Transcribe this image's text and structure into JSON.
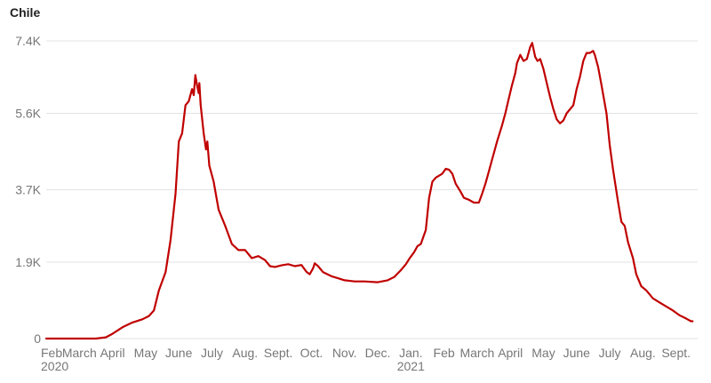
{
  "chart_data": {
    "type": "line",
    "title": "Chile",
    "xlabel": "",
    "ylabel": "",
    "colors": {
      "line": "#c00000",
      "grid": "#e3e3e3",
      "axis_text": "#777777"
    },
    "grid": true,
    "legend": "none",
    "ylim": [
      0,
      7400
    ],
    "y_ticks": [
      {
        "value": 0,
        "label": "0"
      },
      {
        "value": 1900,
        "label": "1.9K"
      },
      {
        "value": 3700,
        "label": "3.7K"
      },
      {
        "value": 5600,
        "label": "5.6K"
      },
      {
        "value": 7400,
        "label": "7.4K"
      }
    ],
    "x_ticks": [
      {
        "month": 0,
        "label": "Feb",
        "sub": "2020"
      },
      {
        "month": 1,
        "label": "March",
        "sub": ""
      },
      {
        "month": 2,
        "label": "April",
        "sub": ""
      },
      {
        "month": 3,
        "label": "May",
        "sub": ""
      },
      {
        "month": 4,
        "label": "June",
        "sub": ""
      },
      {
        "month": 5,
        "label": "July",
        "sub": ""
      },
      {
        "month": 6,
        "label": "Aug.",
        "sub": ""
      },
      {
        "month": 7,
        "label": "Sept.",
        "sub": ""
      },
      {
        "month": 8,
        "label": "Oct.",
        "sub": ""
      },
      {
        "month": 9,
        "label": "Nov.",
        "sub": ""
      },
      {
        "month": 10,
        "label": "Dec.",
        "sub": ""
      },
      {
        "month": 11,
        "label": "Jan.",
        "sub": "2021"
      },
      {
        "month": 12,
        "label": "Feb",
        "sub": ""
      },
      {
        "month": 13,
        "label": "March",
        "sub": ""
      },
      {
        "month": 14,
        "label": "April",
        "sub": ""
      },
      {
        "month": 15,
        "label": "May",
        "sub": ""
      },
      {
        "month": 16,
        "label": "June",
        "sub": ""
      },
      {
        "month": 17,
        "label": "July",
        "sub": ""
      },
      {
        "month": 18,
        "label": "Aug.",
        "sub": ""
      },
      {
        "month": 19,
        "label": "Sept.",
        "sub": ""
      }
    ],
    "xlim_months": [
      0,
      19.5
    ],
    "series": [
      {
        "name": "",
        "points": [
          [
            0,
            0
          ],
          [
            0.5,
            0
          ],
          [
            1.0,
            0
          ],
          [
            1.5,
            0
          ],
          [
            1.8,
            30
          ],
          [
            2.0,
            120
          ],
          [
            2.3,
            280
          ],
          [
            2.6,
            400
          ],
          [
            2.9,
            480
          ],
          [
            3.1,
            560
          ],
          [
            3.25,
            700
          ],
          [
            3.4,
            1200
          ],
          [
            3.6,
            1650
          ],
          [
            3.75,
            2450
          ],
          [
            3.9,
            3600
          ],
          [
            4.0,
            4900
          ],
          [
            4.1,
            5100
          ],
          [
            4.2,
            5800
          ],
          [
            4.3,
            5900
          ],
          [
            4.4,
            6200
          ],
          [
            4.45,
            6050
          ],
          [
            4.5,
            6550
          ],
          [
            4.55,
            6300
          ],
          [
            4.6,
            6100
          ],
          [
            4.62,
            6350
          ],
          [
            4.66,
            5800
          ],
          [
            4.75,
            5100
          ],
          [
            4.82,
            4700
          ],
          [
            4.86,
            4900
          ],
          [
            4.92,
            4300
          ],
          [
            5.05,
            3900
          ],
          [
            5.2,
            3200
          ],
          [
            5.4,
            2800
          ],
          [
            5.6,
            2350
          ],
          [
            5.8,
            2200
          ],
          [
            6.0,
            2200
          ],
          [
            6.2,
            2000
          ],
          [
            6.4,
            2050
          ],
          [
            6.6,
            1950
          ],
          [
            6.75,
            1800
          ],
          [
            6.9,
            1780
          ],
          [
            7.1,
            1820
          ],
          [
            7.3,
            1850
          ],
          [
            7.5,
            1800
          ],
          [
            7.7,
            1830
          ],
          [
            7.85,
            1660
          ],
          [
            7.95,
            1600
          ],
          [
            8.05,
            1750
          ],
          [
            8.1,
            1870
          ],
          [
            8.2,
            1800
          ],
          [
            8.35,
            1650
          ],
          [
            8.6,
            1550
          ],
          [
            9.0,
            1450
          ],
          [
            9.3,
            1420
          ],
          [
            9.6,
            1420
          ],
          [
            10.0,
            1400
          ],
          [
            10.3,
            1450
          ],
          [
            10.5,
            1530
          ],
          [
            10.7,
            1700
          ],
          [
            10.85,
            1850
          ],
          [
            10.95,
            1980
          ],
          [
            11.1,
            2150
          ],
          [
            11.2,
            2300
          ],
          [
            11.3,
            2350
          ],
          [
            11.45,
            2700
          ],
          [
            11.55,
            3500
          ],
          [
            11.65,
            3900
          ],
          [
            11.75,
            4000
          ],
          [
            11.85,
            4050
          ],
          [
            11.95,
            4100
          ],
          [
            12.05,
            4220
          ],
          [
            12.15,
            4200
          ],
          [
            12.25,
            4100
          ],
          [
            12.35,
            3850
          ],
          [
            12.5,
            3650
          ],
          [
            12.6,
            3500
          ],
          [
            12.75,
            3450
          ],
          [
            12.9,
            3380
          ],
          [
            13.05,
            3380
          ],
          [
            13.15,
            3600
          ],
          [
            13.25,
            3850
          ],
          [
            13.35,
            4150
          ],
          [
            13.45,
            4450
          ],
          [
            13.6,
            4900
          ],
          [
            13.75,
            5300
          ],
          [
            13.85,
            5600
          ],
          [
            13.95,
            5950
          ],
          [
            14.05,
            6300
          ],
          [
            14.15,
            6600
          ],
          [
            14.2,
            6850
          ],
          [
            14.3,
            7050
          ],
          [
            14.4,
            6900
          ],
          [
            14.5,
            6950
          ],
          [
            14.6,
            7250
          ],
          [
            14.66,
            7350
          ],
          [
            14.75,
            7000
          ],
          [
            14.82,
            6900
          ],
          [
            14.9,
            6950
          ],
          [
            15.0,
            6700
          ],
          [
            15.1,
            6350
          ],
          [
            15.2,
            6000
          ],
          [
            15.3,
            5700
          ],
          [
            15.4,
            5450
          ],
          [
            15.5,
            5350
          ],
          [
            15.6,
            5420
          ],
          [
            15.7,
            5600
          ],
          [
            15.8,
            5700
          ],
          [
            15.9,
            5800
          ],
          [
            16.0,
            6200
          ],
          [
            16.1,
            6500
          ],
          [
            16.2,
            6900
          ],
          [
            16.3,
            7100
          ],
          [
            16.4,
            7100
          ],
          [
            16.5,
            7150
          ],
          [
            16.55,
            7050
          ],
          [
            16.65,
            6750
          ],
          [
            16.75,
            6300
          ],
          [
            16.9,
            5600
          ],
          [
            17.0,
            4800
          ],
          [
            17.1,
            4200
          ],
          [
            17.25,
            3400
          ],
          [
            17.35,
            2900
          ],
          [
            17.45,
            2800
          ],
          [
            17.55,
            2400
          ],
          [
            17.7,
            2000
          ],
          [
            17.8,
            1600
          ],
          [
            17.95,
            1300
          ],
          [
            18.1,
            1200
          ],
          [
            18.3,
            1000
          ],
          [
            18.5,
            900
          ],
          [
            18.7,
            800
          ],
          [
            18.9,
            700
          ],
          [
            19.1,
            580
          ],
          [
            19.3,
            500
          ],
          [
            19.45,
            430
          ],
          [
            19.5,
            430
          ]
        ]
      }
    ]
  }
}
